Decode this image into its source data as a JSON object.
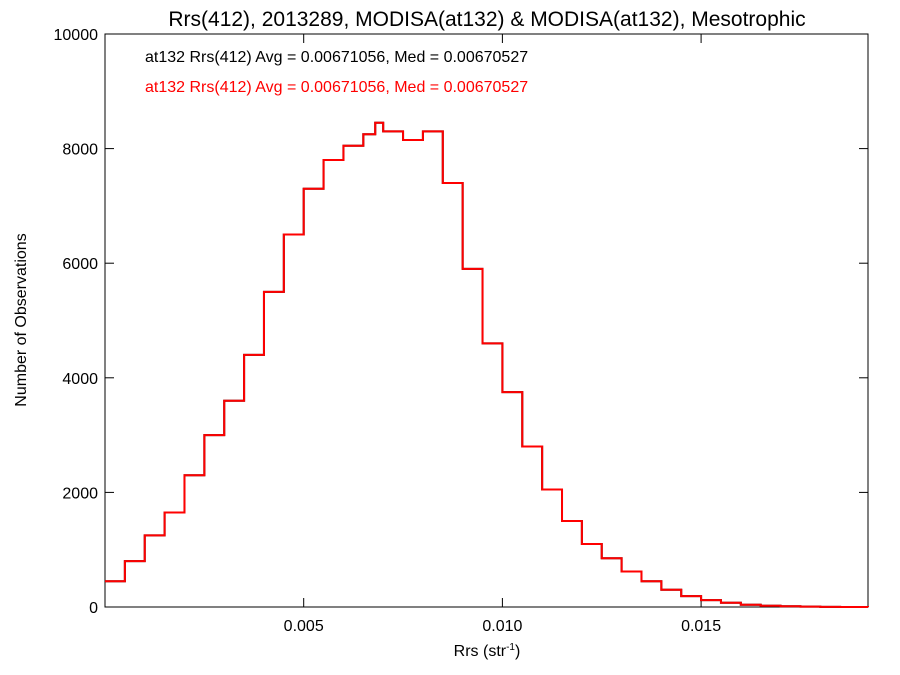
{
  "chart_data": {
    "type": "histogram",
    "title": "Rrs(412), 2013289, MODISA(at132) & MODISA(at132), Mesotrophic",
    "xlabel": "Rrs (str",
    "xlabel_sup": "-1",
    "xlabel_close": ")",
    "ylabel": "Number of Observations",
    "xlim": [
      0.0,
      0.0192
    ],
    "ylim": [
      0,
      10000
    ],
    "x_ticks": [
      {
        "value": 0.005,
        "label": "0.005"
      },
      {
        "value": 0.01,
        "label": "0.010"
      },
      {
        "value": 0.015,
        "label": "0.015"
      }
    ],
    "y_ticks": [
      {
        "value": 0,
        "label": "0"
      },
      {
        "value": 2000,
        "label": "2000"
      },
      {
        "value": 4000,
        "label": "4000"
      },
      {
        "value": 6000,
        "label": "6000"
      },
      {
        "value": 8000,
        "label": "8000"
      },
      {
        "value": 10000,
        "label": "10000"
      }
    ],
    "grid": false,
    "annotations": [
      {
        "text": "at132 Rrs(412) Avg = 0.00671056, Med = 0.00670527",
        "color": "#000000"
      },
      {
        "text": "at132 Rrs(412) Avg = 0.00671056, Med = 0.00670527",
        "color": "#ff0000"
      }
    ],
    "series": [
      {
        "color": "#000000",
        "points": [
          [
            0.0,
            450
          ],
          [
            0.0005,
            800
          ],
          [
            0.001,
            1250
          ],
          [
            0.0015,
            1650
          ],
          [
            0.002,
            2300
          ],
          [
            0.0025,
            3000
          ],
          [
            0.003,
            3600
          ],
          [
            0.0035,
            4400
          ],
          [
            0.004,
            5500
          ],
          [
            0.0045,
            6500
          ],
          [
            0.005,
            7300
          ],
          [
            0.0055,
            7800
          ],
          [
            0.006,
            8050
          ],
          [
            0.0065,
            8250
          ],
          [
            0.0068,
            8450
          ],
          [
            0.007,
            8300
          ],
          [
            0.0075,
            8150
          ],
          [
            0.008,
            8300
          ],
          [
            0.0085,
            7400
          ],
          [
            0.009,
            5900
          ],
          [
            0.0095,
            4600
          ],
          [
            0.01,
            3750
          ],
          [
            0.0105,
            2800
          ],
          [
            0.011,
            2050
          ],
          [
            0.0115,
            1500
          ],
          [
            0.012,
            1100
          ],
          [
            0.0125,
            850
          ],
          [
            0.013,
            620
          ],
          [
            0.0135,
            450
          ],
          [
            0.014,
            300
          ],
          [
            0.0145,
            190
          ],
          [
            0.015,
            120
          ],
          [
            0.0155,
            75
          ],
          [
            0.016,
            40
          ],
          [
            0.0165,
            22
          ],
          [
            0.017,
            12
          ],
          [
            0.0175,
            6
          ],
          [
            0.018,
            3
          ],
          [
            0.0185,
            1
          ],
          [
            0.0192,
            0
          ]
        ]
      },
      {
        "color": "#ff0000",
        "points": [
          [
            0.0,
            450
          ],
          [
            0.0005,
            800
          ],
          [
            0.001,
            1250
          ],
          [
            0.0015,
            1650
          ],
          [
            0.002,
            2300
          ],
          [
            0.0025,
            3000
          ],
          [
            0.003,
            3600
          ],
          [
            0.0035,
            4400
          ],
          [
            0.004,
            5500
          ],
          [
            0.0045,
            6500
          ],
          [
            0.005,
            7300
          ],
          [
            0.0055,
            7800
          ],
          [
            0.006,
            8050
          ],
          [
            0.0065,
            8250
          ],
          [
            0.0068,
            8450
          ],
          [
            0.007,
            8300
          ],
          [
            0.0075,
            8150
          ],
          [
            0.008,
            8300
          ],
          [
            0.0085,
            7400
          ],
          [
            0.009,
            5900
          ],
          [
            0.0095,
            4600
          ],
          [
            0.01,
            3750
          ],
          [
            0.0105,
            2800
          ],
          [
            0.011,
            2050
          ],
          [
            0.0115,
            1500
          ],
          [
            0.012,
            1100
          ],
          [
            0.0125,
            850
          ],
          [
            0.013,
            620
          ],
          [
            0.0135,
            450
          ],
          [
            0.014,
            300
          ],
          [
            0.0145,
            190
          ],
          [
            0.015,
            120
          ],
          [
            0.0155,
            75
          ],
          [
            0.016,
            40
          ],
          [
            0.0165,
            22
          ],
          [
            0.017,
            12
          ],
          [
            0.0175,
            6
          ],
          [
            0.018,
            3
          ],
          [
            0.0185,
            1
          ],
          [
            0.0192,
            0
          ]
        ]
      }
    ]
  }
}
